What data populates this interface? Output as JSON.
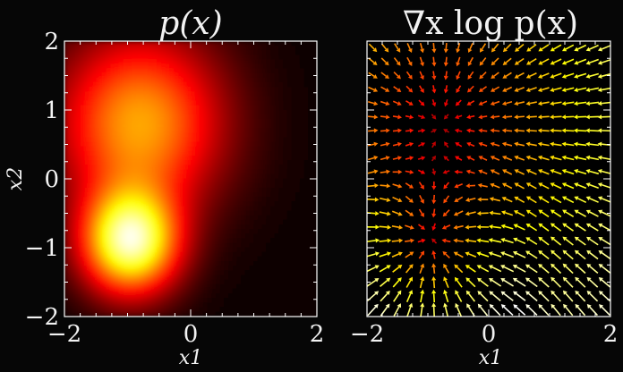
{
  "chart_data": [
    {
      "type": "heatmap",
      "title": "p(x)",
      "xlabel": "x1",
      "ylabel": "x2",
      "xlim": [
        -2,
        2
      ],
      "ylim": [
        -2,
        2
      ],
      "xticks": [
        "−2",
        "0",
        "2"
      ],
      "yticks": [
        "2",
        "1",
        "0",
        "−1",
        "−2"
      ],
      "colormap": "hot",
      "background": "#060606",
      "density_peaks": [
        {
          "x": -0.95,
          "y": -0.9,
          "weight": 0.75,
          "spread": 0.5
        },
        {
          "x": -0.8,
          "y": 0.8,
          "weight": 0.45,
          "spread": 0.85
        }
      ]
    },
    {
      "type": "quiver",
      "title": "∇x log p(x)",
      "xlabel": "x1",
      "ylabel": "",
      "xlim": [
        -2,
        2
      ],
      "ylim": [
        -2,
        2
      ],
      "xticks": [
        "−2",
        "0",
        "2"
      ],
      "grid": "20 x 20 arrows",
      "arrow_direction": "toward density peaks",
      "color_by": "magnitude",
      "colormap": "hot"
    }
  ]
}
